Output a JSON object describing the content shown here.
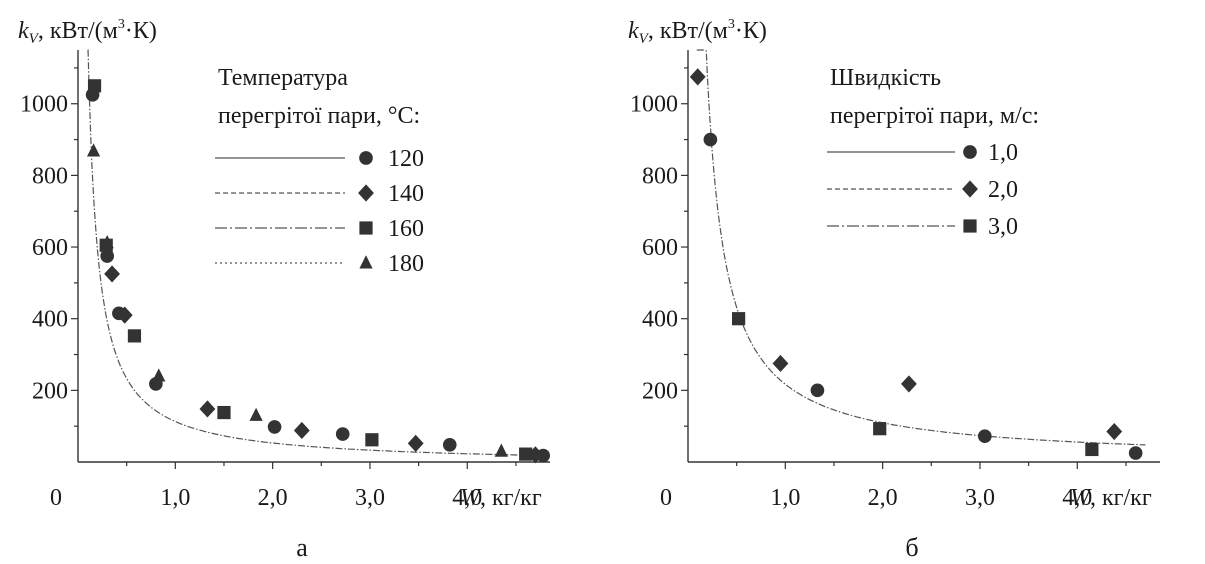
{
  "chart_data": [
    {
      "type": "scatter",
      "panel_label": "а",
      "ylabel_main": "k",
      "ylabel_sub": "V",
      "ylabel_units": ", кВт/(м",
      "ylabel_sup": "3",
      "ylabel_end": "·К)",
      "xlabel_var": "W",
      "xlabel_units": ", кг/кг",
      "origin_label": "0",
      "xlim": [
        0,
        4.85
      ],
      "ylim": [
        0,
        1150
      ],
      "x_ticks": [
        1.0,
        2.0,
        3.0,
        4.0
      ],
      "x_tick_labels": [
        "1,0",
        "2,0",
        "3,0",
        "4,0"
      ],
      "y_ticks": [
        200,
        400,
        600,
        800,
        1000
      ],
      "y_tick_labels": [
        "200",
        "400",
        "600",
        "800",
        "1000"
      ],
      "legend_title_lines": [
        "Температура",
        "перегрітої пари, °С:"
      ],
      "legend_position": "top-right",
      "fit_curve": {
        "a": 120,
        "b": -7,
        "x_from": 0.1,
        "x_to": 4.8
      },
      "series": [
        {
          "name": "120",
          "marker": "circle",
          "dash": "",
          "x": [
            0.15,
            0.3,
            0.42,
            0.8,
            2.02,
            2.72,
            3.82,
            4.78
          ],
          "y": [
            1025,
            575,
            415,
            218,
            98,
            78,
            48,
            18
          ]
        },
        {
          "name": "140",
          "marker": "diamond",
          "dash": "5,3",
          "x": [
            0.35,
            0.48,
            1.33,
            2.3,
            3.47,
            4.7
          ],
          "y": [
            525,
            410,
            148,
            88,
            52,
            20
          ]
        },
        {
          "name": "160",
          "marker": "square",
          "dash": "12,3,2,3",
          "x": [
            0.17,
            0.29,
            0.58,
            1.5,
            3.02,
            4.6
          ],
          "y": [
            1050,
            605,
            352,
            138,
            62,
            22
          ]
        },
        {
          "name": "180",
          "marker": "triangle",
          "dash": "2,3",
          "x": [
            0.16,
            0.3,
            0.83,
            1.83,
            4.35
          ],
          "y": [
            868,
            612,
            240,
            130,
            30
          ]
        }
      ]
    },
    {
      "type": "scatter",
      "panel_label": "б",
      "ylabel_main": "k",
      "ylabel_sub": "V",
      "ylabel_units": ", кВт/(м",
      "ylabel_sup": "3",
      "ylabel_end": "·К)",
      "xlabel_var": "W",
      "xlabel_units": ", кг/кг",
      "origin_label": "0",
      "xlim": [
        0,
        4.85
      ],
      "ylim": [
        0,
        1150
      ],
      "x_ticks": [
        1.0,
        2.0,
        3.0,
        4.0
      ],
      "x_tick_labels": [
        "1,0",
        "2,0",
        "3,0",
        "4,0"
      ],
      "y_ticks": [
        200,
        400,
        600,
        800,
        1000
      ],
      "y_tick_labels": [
        "200",
        "400",
        "600",
        "800",
        "1000"
      ],
      "legend_title_lines": [
        "Швидкість",
        "перегрітої пари, м/с:"
      ],
      "legend_position": "top-right",
      "fit_curve": {
        "a": 215,
        "b": 2,
        "x_from": 0.09,
        "x_to": 4.7
      },
      "series": [
        {
          "name": "1,0",
          "marker": "circle",
          "dash": "",
          "x": [
            0.23,
            1.33,
            3.05,
            4.6
          ],
          "y": [
            900,
            200,
            72,
            25
          ]
        },
        {
          "name": "2,0",
          "marker": "diamond",
          "dash": "5,3",
          "x": [
            0.1,
            0.95,
            2.27,
            4.38
          ],
          "y": [
            1075,
            275,
            218,
            85
          ]
        },
        {
          "name": "3,0",
          "marker": "square",
          "dash": "12,3,2,3",
          "x": [
            0.52,
            1.97,
            4.15
          ],
          "y": [
            400,
            93,
            35
          ]
        }
      ]
    }
  ]
}
